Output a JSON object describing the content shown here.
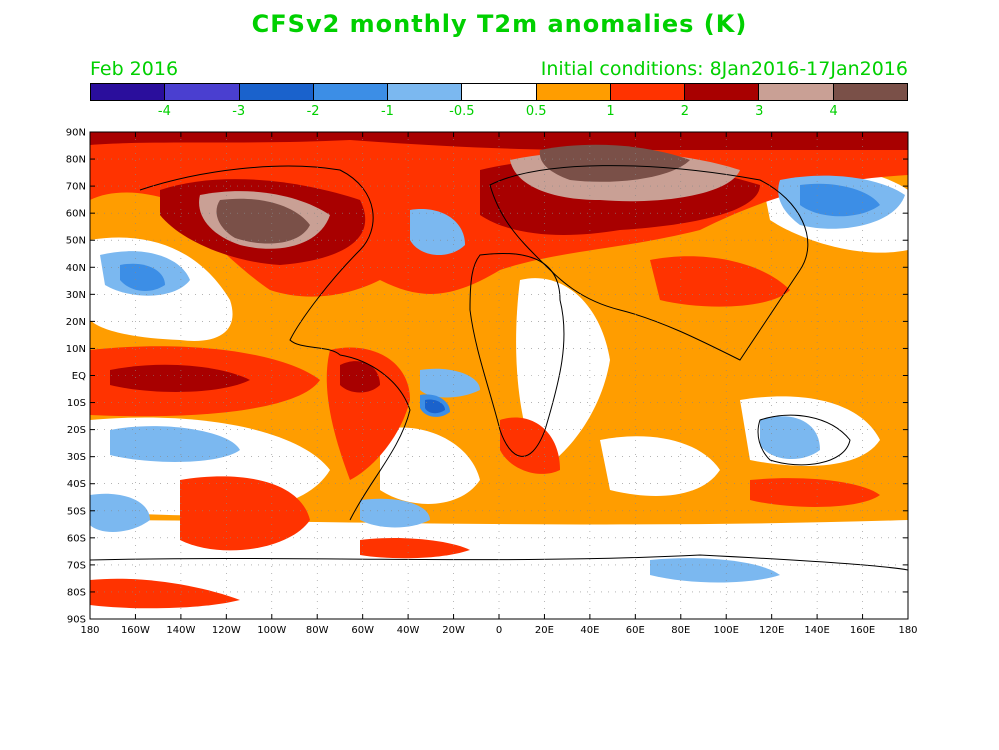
{
  "title": "CFSv2 monthly T2m anomalies (K)",
  "month": "Feb 2016",
  "initial_conditions": "Initial conditions: 8Jan2016-17Jan2016",
  "colorbar": {
    "colors": [
      "#2a0e9c",
      "#4a3fd0",
      "#1a62cc",
      "#3c8ee6",
      "#7bb8f0",
      "#ffffff",
      "#ff9d00",
      "#ff3300",
      "#a80000",
      "#c9a095",
      "#7a5048"
    ],
    "labels": [
      "-4",
      "-3",
      "-2",
      "-1",
      "-0.5",
      "0.5",
      "1",
      "2",
      "3",
      "4"
    ]
  },
  "axes": {
    "lat_labels": [
      "90N",
      "80N",
      "70N",
      "60N",
      "50N",
      "40N",
      "30N",
      "20N",
      "10N",
      "EQ",
      "10S",
      "20S",
      "30S",
      "40S",
      "50S",
      "60S",
      "70S",
      "80S",
      "90S"
    ],
    "lon_labels": [
      "180",
      "160W",
      "140W",
      "120W",
      "100W",
      "80W",
      "60W",
      "40W",
      "20W",
      "0",
      "20E",
      "40E",
      "60E",
      "80E",
      "100E",
      "120E",
      "140E",
      "160E",
      "180"
    ]
  }
}
